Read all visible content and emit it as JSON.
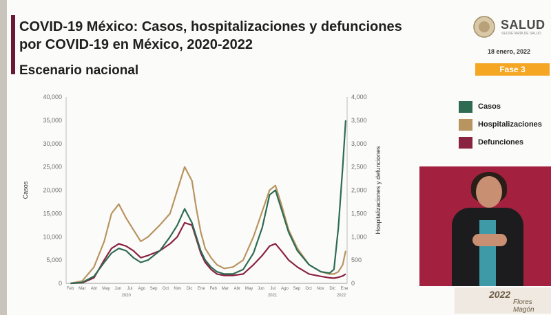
{
  "header": {
    "title": "COVID-19 México: Casos, hospitalizaciones y defunciones por COVID-19 en México, 2020-2022",
    "subtitle": "Escenario nacional",
    "logo_text": "SALUD",
    "logo_subtext": "SECRETARÍA DE SALUD",
    "date": "18 enero, 2022",
    "phase": "Fase 3"
  },
  "footer": {
    "logo_year": "2022",
    "logo_word": "Flores Magón"
  },
  "colors": {
    "casos": "#2e6b52",
    "hospitalizaciones": "#b89460",
    "defunciones": "#8a2340",
    "fase": "#f5a623",
    "accent": "#6b1a35"
  },
  "legend": [
    {
      "label": "Casos",
      "color": "#2e6b52"
    },
    {
      "label": "Hospitalizaciones",
      "color": "#b89460"
    },
    {
      "label": "Defunciones",
      "color": "#8a2340"
    }
  ],
  "chart_data": {
    "type": "line",
    "x": [
      2020.17,
      2020.25,
      2020.33,
      2020.4,
      2020.45,
      2020.5,
      2020.55,
      2020.6,
      2020.65,
      2020.7,
      2020.78,
      2020.85,
      2020.9,
      2020.95,
      2021.0,
      2021.03,
      2021.06,
      2021.09,
      2021.13,
      2021.17,
      2021.22,
      2021.28,
      2021.35,
      2021.42,
      2021.48,
      2021.53,
      2021.57,
      2021.61,
      2021.66,
      2021.72,
      2021.8,
      2021.88,
      2021.94,
      2021.97,
      2022.0,
      2022.03,
      2022.05
    ],
    "x_tick_labels": [
      "Feb",
      "Mar",
      "Abr",
      "May",
      "Jun",
      "Jul",
      "Ago",
      "Sep",
      "Oct",
      "Nov",
      "Dic",
      "Ene",
      "Feb",
      "Mar",
      "Abr",
      "May",
      "Jun",
      "Jul",
      "Ago",
      "Sep",
      "Oct",
      "Nov",
      "Dic",
      "Ene"
    ],
    "x_year_labels": [
      "2020",
      "2021",
      "2022"
    ],
    "y_left": {
      "label": "Casos",
      "ylim": [
        0,
        40000
      ],
      "ticks": [
        "0",
        "5,000",
        "10,000",
        "15,000",
        "20,000",
        "25,000",
        "30,000",
        "35,000",
        "40,000"
      ]
    },
    "y_right": {
      "label": "Hospitalizaciones y defunciones",
      "ylim": [
        0,
        4000
      ],
      "ticks": [
        "0",
        "500",
        "1,000",
        "1,500",
        "2,000",
        "2,500",
        "3,000",
        "3,500",
        "4,000"
      ]
    },
    "series": [
      {
        "name": "Casos",
        "axis": "left",
        "values": [
          0,
          200,
          1500,
          4500,
          6500,
          7500,
          7000,
          5500,
          4500,
          5000,
          7000,
          10000,
          12500,
          16000,
          13000,
          10000,
          7000,
          5000,
          3500,
          2500,
          2000,
          2000,
          3000,
          6500,
          12000,
          19000,
          20000,
          16000,
          11000,
          7000,
          4000,
          2500,
          2200,
          3000,
          12000,
          25000,
          35000
        ]
      },
      {
        "name": "Hospitalizaciones",
        "axis": "left",
        "values": [
          0,
          500,
          3500,
          9000,
          15000,
          17000,
          14000,
          11500,
          9000,
          10000,
          12500,
          15000,
          20000,
          25000,
          22000,
          16000,
          11000,
          7500,
          5500,
          4000,
          3200,
          3500,
          5000,
          10000,
          15500,
          20000,
          21000,
          17000,
          11500,
          7500,
          4000,
          2500,
          2000,
          2000,
          2500,
          4000,
          7000
        ]
      },
      {
        "name": "Defunciones",
        "axis": "right",
        "values": [
          0,
          10,
          120,
          500,
          750,
          850,
          800,
          700,
          550,
          600,
          700,
          850,
          1000,
          1300,
          1250,
          950,
          650,
          450,
          300,
          200,
          170,
          170,
          200,
          400,
          600,
          800,
          850,
          700,
          500,
          350,
          200,
          150,
          120,
          110,
          130,
          160,
          200
        ]
      }
    ]
  }
}
